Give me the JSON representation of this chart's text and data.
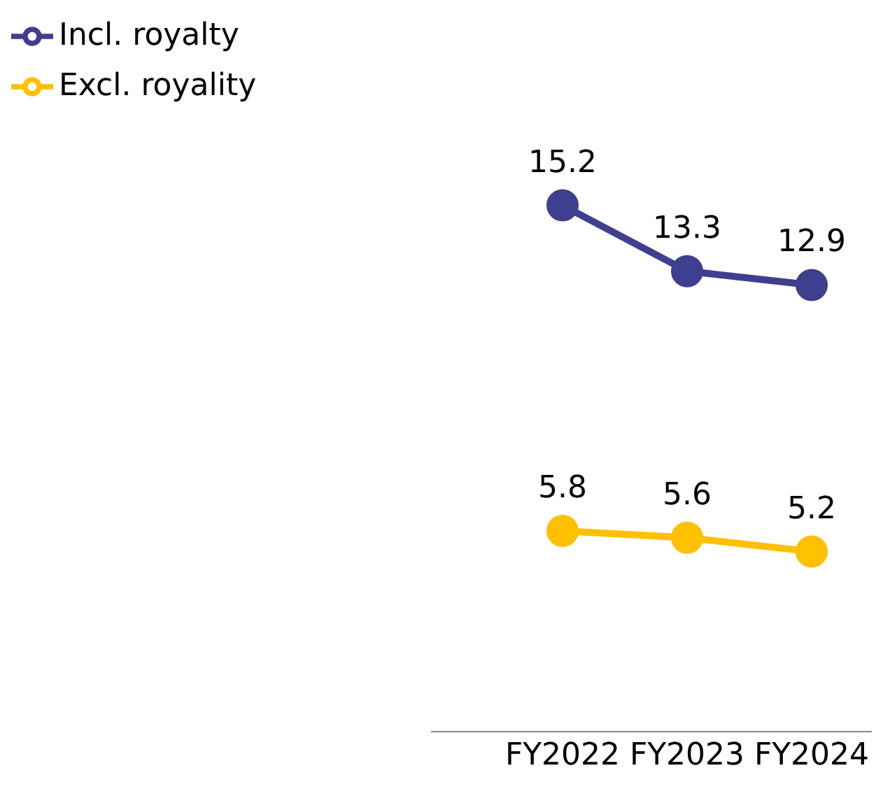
{
  "chart_data": {
    "type": "line",
    "categories": [
      "FY2022",
      "FY2023",
      "FY2024"
    ],
    "series": [
      {
        "name": "Incl. royalty",
        "color": "#3f3f8f",
        "values": [
          15.2,
          13.3,
          12.9
        ]
      },
      {
        "name": "Excl. royality",
        "color": "#ffc000",
        "values": [
          5.8,
          5.6,
          5.2
        ]
      }
    ],
    "data_labels": true,
    "legend": "top left",
    "marker": "circle",
    "line_style": "solid",
    "tick_labels": "x",
    "grid": false
  }
}
